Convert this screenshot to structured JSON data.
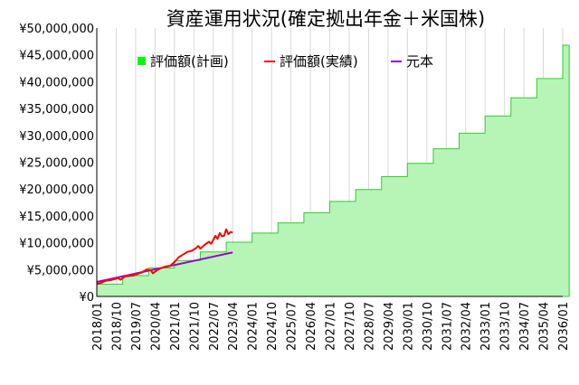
{
  "chart_data": {
    "type": "area",
    "title": "資産運用状況(確定拠出年金＋米国株)",
    "xlabel": "",
    "ylabel": "",
    "ylim": [
      0,
      50000000
    ],
    "grid": {
      "vertical": true,
      "horizontal": false
    },
    "legend_position": "top-left",
    "y_ticks": [
      {
        "value": 0,
        "label": "¥0"
      },
      {
        "value": 5000000,
        "label": "¥5,000,000"
      },
      {
        "value": 10000000,
        "label": "¥10,000,000"
      },
      {
        "value": 15000000,
        "label": "¥15,000,000"
      },
      {
        "value": 20000000,
        "label": "¥20,000,000"
      },
      {
        "value": 25000000,
        "label": "¥25,000,000"
      },
      {
        "value": 30000000,
        "label": "¥30,000,000"
      },
      {
        "value": 35000000,
        "label": "¥35,000,000"
      },
      {
        "value": 40000000,
        "label": "¥40,000,000"
      },
      {
        "value": 45000000,
        "label": "¥45,000,000"
      },
      {
        "value": 50000000,
        "label": "¥50,000,000"
      }
    ],
    "x_ticks": [
      "2018/01",
      "2018/10",
      "2019/07",
      "2020/04",
      "2021/01",
      "2021/10",
      "2022/07",
      "2023/04",
      "2024/01",
      "2024/10",
      "2025/07",
      "2026/04",
      "2027/01",
      "2027/10",
      "2028/07",
      "2029/04",
      "2030/01",
      "2030/10",
      "2031/07",
      "2032/04",
      "2033/01",
      "2033/10",
      "2034/07",
      "2035/04",
      "2036/01"
    ],
    "series": [
      {
        "name": "評価額(計画)",
        "kind": "step-area",
        "color": "#00ff00",
        "fill": "#b6f5b6",
        "steps": [
          {
            "from": "2018/01",
            "value": 2300000
          },
          {
            "from": "2019/01",
            "value": 3900000
          },
          {
            "from": "2020/01",
            "value": 5300000
          },
          {
            "from": "2021/01",
            "value": 6700000
          },
          {
            "from": "2022/01",
            "value": 8300000
          },
          {
            "from": "2023/01",
            "value": 10100000
          },
          {
            "from": "2024/01",
            "value": 11800000
          },
          {
            "from": "2025/01",
            "value": 13700000
          },
          {
            "from": "2026/01",
            "value": 15600000
          },
          {
            "from": "2027/01",
            "value": 17700000
          },
          {
            "from": "2028/01",
            "value": 19900000
          },
          {
            "from": "2029/01",
            "value": 22300000
          },
          {
            "from": "2030/01",
            "value": 24800000
          },
          {
            "from": "2031/01",
            "value": 27500000
          },
          {
            "from": "2032/01",
            "value": 30400000
          },
          {
            "from": "2033/01",
            "value": 33600000
          },
          {
            "from": "2034/01",
            "value": 37000000
          },
          {
            "from": "2035/01",
            "value": 40600000
          },
          {
            "from": "2036/01",
            "value": 46800000
          }
        ],
        "end": "2036/04"
      },
      {
        "name": "評価額(実績)",
        "kind": "line",
        "color": "#ff0000",
        "points": [
          [
            "2018/01",
            2300000
          ],
          [
            "2018/03",
            2500000
          ],
          [
            "2018/05",
            2900000
          ],
          [
            "2018/07",
            3000000
          ],
          [
            "2018/09",
            3200000
          ],
          [
            "2018/11",
            3400000
          ],
          [
            "2018/12",
            3100000
          ],
          [
            "2019/02",
            3700000
          ],
          [
            "2019/04",
            3800000
          ],
          [
            "2019/06",
            3900000
          ],
          [
            "2019/08",
            4200000
          ],
          [
            "2019/10",
            4500000
          ],
          [
            "2019/12",
            5000000
          ],
          [
            "2020/02",
            4900000
          ],
          [
            "2020/03",
            4300000
          ],
          [
            "2020/05",
            4900000
          ],
          [
            "2020/07",
            5300000
          ],
          [
            "2020/09",
            5600000
          ],
          [
            "2020/11",
            5700000
          ],
          [
            "2021/01",
            6400000
          ],
          [
            "2021/03",
            7300000
          ],
          [
            "2021/05",
            7800000
          ],
          [
            "2021/07",
            8300000
          ],
          [
            "2021/09",
            8500000
          ],
          [
            "2021/11",
            9000000
          ],
          [
            "2021/12",
            9400000
          ],
          [
            "2022/01",
            8900000
          ],
          [
            "2022/03",
            9600000
          ],
          [
            "2022/05",
            10200000
          ],
          [
            "2022/06",
            9800000
          ],
          [
            "2022/08",
            11300000
          ],
          [
            "2022/09",
            10700000
          ],
          [
            "2022/10",
            11800000
          ],
          [
            "2022/11",
            11200000
          ],
          [
            "2022/12",
            11300000
          ],
          [
            "2023/01",
            12500000
          ],
          [
            "2023/02",
            11600000
          ],
          [
            "2023/03",
            12000000
          ],
          [
            "2023/04",
            11900000
          ]
        ]
      },
      {
        "name": "元本",
        "kind": "line",
        "color": "#9900cc",
        "points": [
          [
            "2018/01",
            2700000
          ],
          [
            "2023/04",
            8200000
          ]
        ]
      }
    ]
  }
}
